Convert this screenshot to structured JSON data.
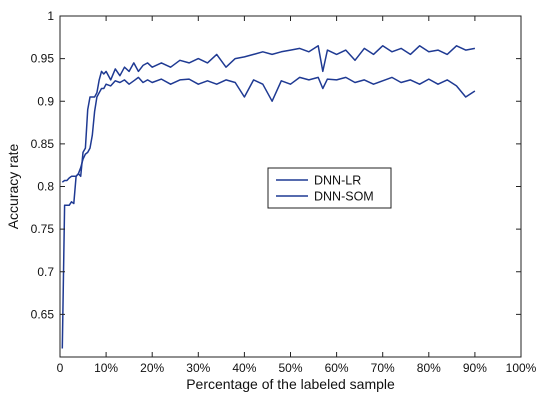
{
  "chart_data": {
    "type": "line",
    "xlabel": "Percentage of the labeled sample",
    "ylabel": "Accuracy rate",
    "xlim": [
      0,
      100
    ],
    "ylim": [
      0.6,
      1.0
    ],
    "x_ticks": [
      0,
      20,
      40,
      60,
      80,
      100
    ],
    "x_tick_labels": [
      "0",
      "20%",
      "40%",
      "60%",
      "80%",
      "100%"
    ],
    "x_minor_ticks": [
      10,
      30,
      50,
      70,
      90
    ],
    "x_minor_tick_labels": [
      "10%",
      "30%",
      "50%",
      "70%",
      "90%"
    ],
    "y_ticks": [
      0.65,
      0.7,
      0.75,
      0.8,
      0.85,
      0.9,
      0.95,
      1.0
    ],
    "y_tick_labels": [
      "0.65",
      "0.7",
      "0.75",
      "0.8",
      "0.85",
      "0.9",
      "0.95",
      "1"
    ],
    "grid": false,
    "legend_position": "center-right",
    "line_color": "#1f3a93",
    "series": [
      {
        "name": "DNN-LR",
        "x": [
          0.5,
          1,
          1.5,
          2,
          2.5,
          3,
          3.5,
          4,
          4.5,
          5,
          5.5,
          6,
          6.5,
          7,
          7.5,
          8,
          8.5,
          9,
          9.5,
          10,
          11,
          12,
          13,
          14,
          15,
          16,
          17,
          18,
          19,
          20,
          22,
          24,
          26,
          28,
          30,
          32,
          34,
          36,
          38,
          40,
          42,
          44,
          46,
          48,
          50,
          52,
          54,
          56,
          57,
          58,
          60,
          62,
          64,
          66,
          68,
          70,
          72,
          74,
          76,
          78,
          80,
          82,
          84,
          86,
          88,
          90
        ],
        "values": [
          0.805,
          0.807,
          0.807,
          0.81,
          0.812,
          0.812,
          0.812,
          0.815,
          0.822,
          0.832,
          0.838,
          0.84,
          0.845,
          0.86,
          0.888,
          0.905,
          0.91,
          0.915,
          0.915,
          0.92,
          0.918,
          0.924,
          0.922,
          0.925,
          0.92,
          0.924,
          0.928,
          0.922,
          0.925,
          0.922,
          0.926,
          0.92,
          0.925,
          0.926,
          0.92,
          0.924,
          0.92,
          0.925,
          0.922,
          0.905,
          0.925,
          0.92,
          0.9,
          0.924,
          0.92,
          0.928,
          0.925,
          0.928,
          0.915,
          0.926,
          0.925,
          0.928,
          0.922,
          0.925,
          0.92,
          0.924,
          0.928,
          0.922,
          0.925,
          0.92,
          0.926,
          0.92,
          0.925,
          0.918,
          0.905,
          0.912
        ]
      },
      {
        "name": "DNN-SOM",
        "x": [
          0.5,
          1,
          1.5,
          2,
          2.5,
          3,
          3.5,
          4,
          4.5,
          5,
          5.5,
          6,
          6.5,
          7,
          7.5,
          8,
          8.5,
          9,
          9.5,
          10,
          11,
          12,
          13,
          14,
          15,
          16,
          17,
          18,
          19,
          20,
          22,
          24,
          26,
          28,
          30,
          32,
          34,
          36,
          38,
          40,
          42,
          44,
          46,
          48,
          50,
          52,
          54,
          56,
          57,
          58,
          60,
          62,
          64,
          66,
          68,
          70,
          72,
          74,
          76,
          78,
          80,
          82,
          84,
          86,
          88,
          90
        ],
        "values": [
          0.61,
          0.778,
          0.778,
          0.778,
          0.782,
          0.78,
          0.812,
          0.815,
          0.812,
          0.84,
          0.845,
          0.89,
          0.905,
          0.905,
          0.905,
          0.91,
          0.925,
          0.935,
          0.932,
          0.935,
          0.925,
          0.938,
          0.93,
          0.94,
          0.935,
          0.945,
          0.935,
          0.942,
          0.945,
          0.94,
          0.945,
          0.94,
          0.948,
          0.945,
          0.95,
          0.945,
          0.955,
          0.94,
          0.95,
          0.952,
          0.955,
          0.958,
          0.955,
          0.958,
          0.96,
          0.962,
          0.958,
          0.965,
          0.935,
          0.96,
          0.955,
          0.96,
          0.948,
          0.962,
          0.955,
          0.965,
          0.958,
          0.962,
          0.955,
          0.965,
          0.958,
          0.96,
          0.955,
          0.965,
          0.96,
          0.962
        ]
      }
    ]
  }
}
